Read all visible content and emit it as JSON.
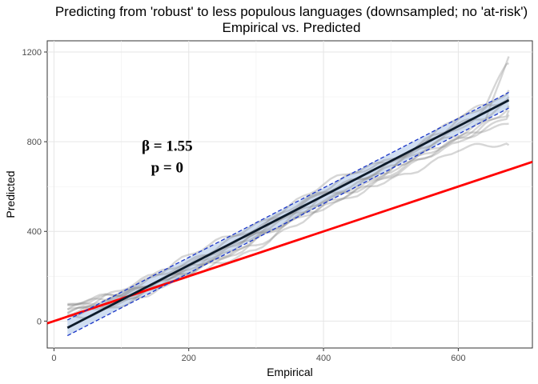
{
  "chart_data": {
    "type": "line",
    "title": "Predicting from 'robust' to less populous languages (downsampled; no 'at-risk')",
    "subtitle": "Empirical vs. Predicted",
    "xlabel": "Empirical",
    "ylabel": "Predicted",
    "xlim": [
      -10,
      710
    ],
    "ylim": [
      -120,
      1250
    ],
    "x_ticks": [
      0,
      200,
      400,
      600
    ],
    "y_ticks": [
      0,
      400,
      800,
      1200
    ],
    "x_tick_labels": [
      "0",
      "200",
      "400",
      "600"
    ],
    "y_tick_labels": [
      "0",
      "400",
      "800",
      "1200"
    ],
    "grid": true,
    "annotations": [
      {
        "text": "β = 1.55",
        "x": 168,
        "y": 780
      },
      {
        "text": "p = 0",
        "x": 168,
        "y": 685
      }
    ],
    "identity_line": {
      "x": [
        -10,
        710
      ],
      "y": [
        -10,
        710
      ],
      "color": "#ff0000"
    },
    "fit_line": {
      "x": [
        20,
        675
      ],
      "y": [
        -30,
        985
      ],
      "color": "#0d1b2a"
    },
    "fit_interval": {
      "x": [
        20,
        675
      ],
      "lower": [
        -65,
        950
      ],
      "upper": [
        5,
        1020
      ],
      "color": "#1a35c8",
      "fill": "#c8d8ee"
    },
    "grey_traces": [
      {
        "x": [
          20,
          100,
          200,
          300,
          400,
          500,
          600,
          640,
          675
        ],
        "y": [
          60,
          120,
          230,
          380,
          520,
          670,
          820,
          870,
          1180
        ]
      },
      {
        "x": [
          20,
          100,
          200,
          300,
          400,
          500,
          600,
          640,
          675
        ],
        "y": [
          40,
          110,
          240,
          420,
          580,
          720,
          890,
          950,
          1150
        ]
      },
      {
        "x": [
          20,
          100,
          200,
          300,
          400,
          500,
          600,
          640,
          675
        ],
        "y": [
          20,
          90,
          200,
          350,
          500,
          640,
          760,
          770,
          785
        ]
      },
      {
        "x": [
          20,
          100,
          200,
          300,
          400,
          500,
          600,
          640,
          675
        ],
        "y": [
          50,
          140,
          280,
          440,
          600,
          730,
          840,
          930,
          1030
        ]
      },
      {
        "x": [
          20,
          100,
          200,
          300,
          400,
          500,
          600,
          640,
          675
        ],
        "y": [
          30,
          100,
          220,
          400,
          560,
          700,
          800,
          850,
          880
        ]
      },
      {
        "x": [
          20,
          100,
          200,
          300,
          400,
          500,
          600,
          640,
          675
        ],
        "y": [
          70,
          130,
          210,
          330,
          540,
          690,
          900,
          960,
          1000
        ]
      },
      {
        "x": [
          20,
          100,
          200,
          300,
          400,
          500,
          600,
          640,
          675
        ],
        "y": [
          10,
          80,
          190,
          370,
          530,
          660,
          780,
          880,
          940
        ]
      },
      {
        "x": [
          20,
          100,
          200,
          300,
          400,
          500,
          600,
          640,
          675
        ],
        "y": [
          45,
          125,
          260,
          410,
          570,
          710,
          870,
          920,
          990
        ]
      },
      {
        "x": [
          20,
          100,
          200,
          300,
          400,
          500,
          600,
          640,
          675
        ],
        "y": [
          35,
          105,
          215,
          390,
          520,
          680,
          830,
          900,
          960
        ]
      },
      {
        "x": [
          20,
          100,
          200,
          300,
          400,
          500,
          600,
          640,
          675
        ],
        "y": [
          55,
          135,
          250,
          360,
          510,
          650,
          810,
          870,
          920
        ]
      }
    ]
  }
}
